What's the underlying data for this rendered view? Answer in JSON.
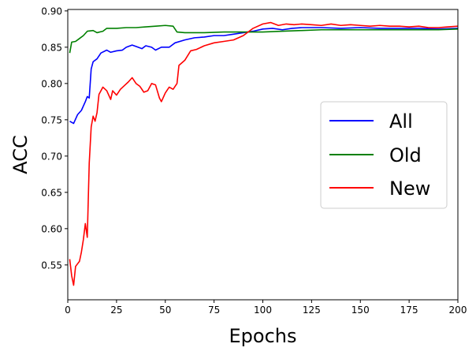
{
  "chart_data": {
    "type": "line",
    "title": "",
    "xlabel": "Epochs",
    "ylabel": "ACC",
    "xlim": [
      0,
      200
    ],
    "ylim": [
      0.502,
      0.902
    ],
    "xticks": [
      0,
      25,
      50,
      75,
      100,
      125,
      150,
      175,
      200
    ],
    "yticks": [
      0.55,
      0.6,
      0.65,
      0.7,
      0.75,
      0.8,
      0.85,
      0.9
    ],
    "grid": false,
    "legend_position": "center-right",
    "series": [
      {
        "name": "All",
        "color": "#0000ff",
        "points": [
          [
            1,
            0.748
          ],
          [
            3,
            0.745
          ],
          [
            5,
            0.757
          ],
          [
            7,
            0.763
          ],
          [
            9,
            0.775
          ],
          [
            10,
            0.782
          ],
          [
            11,
            0.78
          ],
          [
            12,
            0.82
          ],
          [
            13,
            0.83
          ],
          [
            15,
            0.834
          ],
          [
            17,
            0.842
          ],
          [
            20,
            0.846
          ],
          [
            22,
            0.843
          ],
          [
            25,
            0.845
          ],
          [
            28,
            0.846
          ],
          [
            30,
            0.85
          ],
          [
            33,
            0.853
          ],
          [
            35,
            0.851
          ],
          [
            38,
            0.848
          ],
          [
            40,
            0.852
          ],
          [
            43,
            0.85
          ],
          [
            45,
            0.846
          ],
          [
            48,
            0.85
          ],
          [
            52,
            0.85
          ],
          [
            55,
            0.856
          ],
          [
            60,
            0.86
          ],
          [
            65,
            0.863
          ],
          [
            70,
            0.864
          ],
          [
            75,
            0.866
          ],
          [
            80,
            0.866
          ],
          [
            85,
            0.868
          ],
          [
            90,
            0.87
          ],
          [
            95,
            0.872
          ],
          [
            100,
            0.875
          ],
          [
            105,
            0.876
          ],
          [
            110,
            0.874
          ],
          [
            115,
            0.876
          ],
          [
            120,
            0.877
          ],
          [
            130,
            0.877
          ],
          [
            140,
            0.876
          ],
          [
            150,
            0.877
          ],
          [
            160,
            0.876
          ],
          [
            170,
            0.876
          ],
          [
            180,
            0.876
          ],
          [
            190,
            0.875
          ],
          [
            200,
            0.876
          ]
        ]
      },
      {
        "name": "Old",
        "color": "#008000",
        "points": [
          [
            1,
            0.842
          ],
          [
            2,
            0.857
          ],
          [
            4,
            0.858
          ],
          [
            6,
            0.862
          ],
          [
            8,
            0.866
          ],
          [
            10,
            0.872
          ],
          [
            13,
            0.873
          ],
          [
            15,
            0.87
          ],
          [
            18,
            0.872
          ],
          [
            20,
            0.876
          ],
          [
            25,
            0.876
          ],
          [
            30,
            0.877
          ],
          [
            35,
            0.877
          ],
          [
            40,
            0.878
          ],
          [
            45,
            0.879
          ],
          [
            50,
            0.88
          ],
          [
            54,
            0.879
          ],
          [
            56,
            0.871
          ],
          [
            60,
            0.87
          ],
          [
            70,
            0.87
          ],
          [
            80,
            0.871
          ],
          [
            90,
            0.871
          ],
          [
            100,
            0.871
          ],
          [
            110,
            0.872
          ],
          [
            120,
            0.873
          ],
          [
            130,
            0.874
          ],
          [
            140,
            0.874
          ],
          [
            150,
            0.874
          ],
          [
            160,
            0.874
          ],
          [
            170,
            0.874
          ],
          [
            180,
            0.874
          ],
          [
            190,
            0.874
          ],
          [
            200,
            0.875
          ]
        ]
      },
      {
        "name": "New",
        "color": "#ff0000",
        "points": [
          [
            1,
            0.558
          ],
          [
            2,
            0.535
          ],
          [
            3,
            0.522
          ],
          [
            4,
            0.548
          ],
          [
            6,
            0.555
          ],
          [
            7,
            0.568
          ],
          [
            8,
            0.585
          ],
          [
            9,
            0.607
          ],
          [
            10,
            0.588
          ],
          [
            11,
            0.69
          ],
          [
            12,
            0.74
          ],
          [
            13,
            0.755
          ],
          [
            14,
            0.748
          ],
          [
            15,
            0.76
          ],
          [
            16,
            0.785
          ],
          [
            18,
            0.795
          ],
          [
            20,
            0.79
          ],
          [
            22,
            0.778
          ],
          [
            23,
            0.79
          ],
          [
            25,
            0.784
          ],
          [
            27,
            0.792
          ],
          [
            29,
            0.797
          ],
          [
            31,
            0.802
          ],
          [
            33,
            0.808
          ],
          [
            35,
            0.8
          ],
          [
            37,
            0.796
          ],
          [
            39,
            0.788
          ],
          [
            41,
            0.79
          ],
          [
            43,
            0.8
          ],
          [
            45,
            0.798
          ],
          [
            47,
            0.78
          ],
          [
            48,
            0.775
          ],
          [
            50,
            0.787
          ],
          [
            52,
            0.795
          ],
          [
            54,
            0.792
          ],
          [
            56,
            0.8
          ],
          [
            57,
            0.825
          ],
          [
            60,
            0.832
          ],
          [
            63,
            0.845
          ],
          [
            66,
            0.847
          ],
          [
            70,
            0.852
          ],
          [
            75,
            0.856
          ],
          [
            80,
            0.858
          ],
          [
            85,
            0.86
          ],
          [
            90,
            0.866
          ],
          [
            95,
            0.876
          ],
          [
            100,
            0.882
          ],
          [
            104,
            0.884
          ],
          [
            108,
            0.88
          ],
          [
            112,
            0.882
          ],
          [
            116,
            0.881
          ],
          [
            120,
            0.882
          ],
          [
            125,
            0.881
          ],
          [
            130,
            0.88
          ],
          [
            135,
            0.882
          ],
          [
            140,
            0.88
          ],
          [
            145,
            0.881
          ],
          [
            150,
            0.88
          ],
          [
            155,
            0.879
          ],
          [
            160,
            0.88
          ],
          [
            165,
            0.879
          ],
          [
            170,
            0.879
          ],
          [
            175,
            0.878
          ],
          [
            180,
            0.879
          ],
          [
            185,
            0.877
          ],
          [
            190,
            0.877
          ],
          [
            195,
            0.878
          ],
          [
            200,
            0.879
          ]
        ]
      }
    ]
  }
}
